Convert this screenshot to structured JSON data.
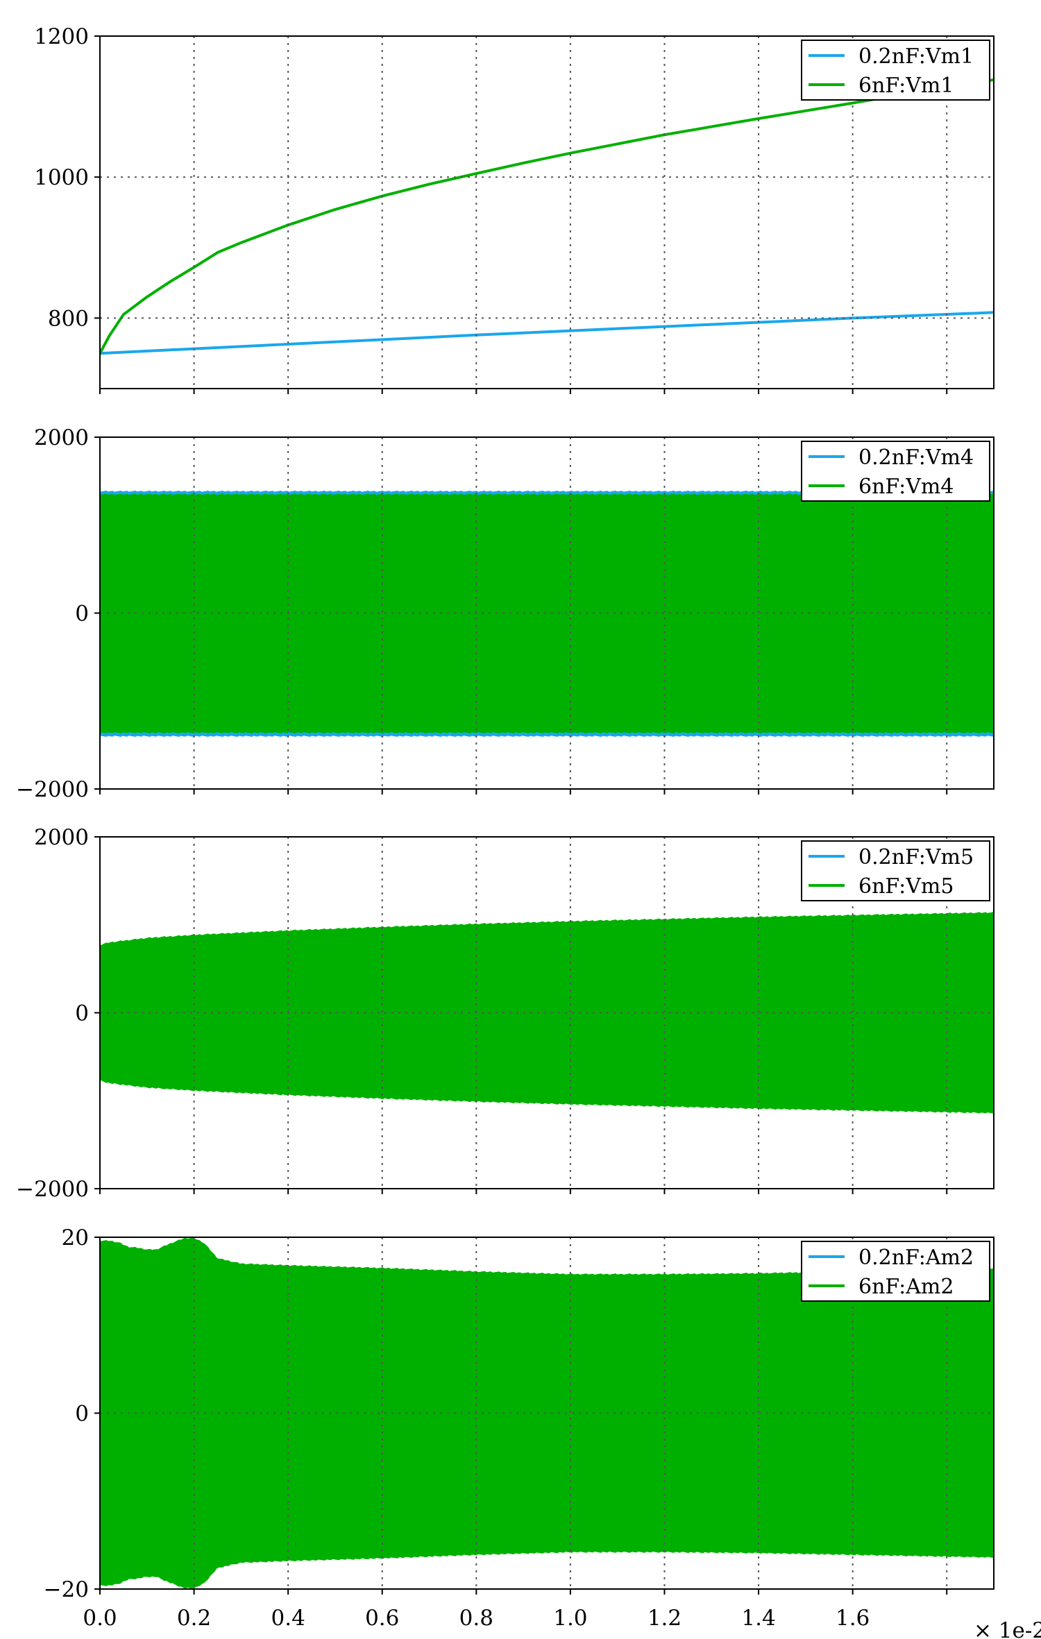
{
  "figure": {
    "x_scale_label": "× 1e-2",
    "x_ticks": [
      "0.0",
      "0.2",
      "0.4",
      "0.6",
      "0.8",
      "1.0",
      "1.2",
      "1.4",
      "1.6"
    ]
  },
  "colors": {
    "blue": "#1aa7ec",
    "green": "#00b000",
    "grid": "#555555"
  },
  "chart_data": [
    {
      "type": "line",
      "xlim": [
        0,
        1.9
      ],
      "ylim": [
        700,
        1200
      ],
      "y_ticks": [
        800,
        1000,
        1200
      ],
      "y_tick_labels": [
        "800",
        "1000",
        "1200"
      ],
      "grid": true,
      "legend_position": "top-right",
      "series": [
        {
          "name": "0.2nF:Vm1",
          "color": "blue",
          "x": [
            0,
            0.4,
            0.8,
            1.2,
            1.6,
            1.9
          ],
          "y": [
            750,
            763,
            776,
            788,
            800,
            808
          ]
        },
        {
          "name": "6nF:Vm1",
          "color": "green",
          "x": [
            0,
            0.02,
            0.05,
            0.1,
            0.15,
            0.2,
            0.25,
            0.3,
            0.4,
            0.5,
            0.6,
            0.7,
            0.8,
            0.9,
            1.0,
            1.2,
            1.4,
            1.6,
            1.8,
            1.9
          ],
          "y": [
            750,
            775,
            805,
            830,
            852,
            872,
            893,
            907,
            932,
            954,
            973,
            990,
            1005,
            1020,
            1034,
            1060,
            1083,
            1105,
            1128,
            1138
          ]
        }
      ]
    },
    {
      "type": "area",
      "xlim": [
        0,
        1.9
      ],
      "ylim": [
        -2000,
        2000
      ],
      "y_ticks": [
        -2000,
        0,
        2000
      ],
      "y_tick_labels": [
        "−2000",
        "0",
        "2000"
      ],
      "grid": true,
      "legend_position": "top-right",
      "series": [
        {
          "name": "0.2nF:Vm4",
          "color": "blue",
          "x": [
            0,
            0.2,
            0.4,
            0.6,
            0.8,
            1.0,
            1.2,
            1.4,
            1.6,
            1.9
          ],
          "upper": [
            1375,
            1375,
            1375,
            1375,
            1375,
            1375,
            1375,
            1375,
            1375,
            1375
          ],
          "lower": [
            -1390,
            -1390,
            -1390,
            -1390,
            -1390,
            -1390,
            -1390,
            -1390,
            -1390,
            -1390
          ]
        },
        {
          "name": "6nF:Vm4",
          "color": "green",
          "x": [
            0,
            0.2,
            0.4,
            0.6,
            0.8,
            1.0,
            1.2,
            1.4,
            1.6,
            1.9
          ],
          "upper": [
            1340,
            1340,
            1340,
            1340,
            1340,
            1340,
            1340,
            1340,
            1340,
            1340
          ],
          "lower": [
            -1350,
            -1350,
            -1350,
            -1350,
            -1350,
            -1350,
            -1350,
            -1350,
            -1350,
            -1350
          ]
        }
      ]
    },
    {
      "type": "area",
      "xlim": [
        0,
        1.9
      ],
      "ylim": [
        -2000,
        2000
      ],
      "y_ticks": [
        -2000,
        0,
        2000
      ],
      "y_tick_labels": [
        "−2000",
        "0",
        "2000"
      ],
      "grid": true,
      "legend_position": "top-right",
      "series": [
        {
          "name": "0.2nF:Vm5",
          "color": "blue",
          "x": [
            0,
            1.9
          ],
          "upper": [
            0,
            0
          ],
          "lower": [
            0,
            0
          ]
        },
        {
          "name": "6nF:Vm5",
          "color": "green",
          "x": [
            0,
            0.02,
            0.1,
            0.2,
            0.3,
            0.4,
            0.6,
            0.8,
            1.0,
            1.2,
            1.4,
            1.6,
            1.8,
            1.9
          ],
          "upper": [
            760,
            790,
            840,
            875,
            900,
            925,
            965,
            1000,
            1030,
            1055,
            1080,
            1100,
            1120,
            1130
          ],
          "lower": [
            -760,
            -790,
            -840,
            -875,
            -900,
            -925,
            -965,
            -1000,
            -1030,
            -1055,
            -1080,
            -1100,
            -1120,
            -1130
          ]
        }
      ]
    },
    {
      "type": "area",
      "xlim": [
        0,
        1.9
      ],
      "ylim": [
        -20,
        20
      ],
      "y_ticks": [
        -20,
        0,
        20
      ],
      "y_tick_labels": [
        "−20",
        "0",
        "20"
      ],
      "grid": true,
      "legend_position": "top-right",
      "series": [
        {
          "name": "0.2nF:Am2",
          "color": "blue",
          "x": [
            0,
            1.9
          ],
          "upper": [
            0,
            0
          ],
          "lower": [
            0,
            0
          ]
        },
        {
          "name": "6nF:Am2",
          "color": "green",
          "x": [
            0,
            0.02,
            0.04,
            0.06,
            0.08,
            0.1,
            0.12,
            0.15,
            0.18,
            0.2,
            0.22,
            0.25,
            0.3,
            0.4,
            0.6,
            0.8,
            1.0,
            1.2,
            1.4,
            1.6,
            1.8,
            1.9
          ],
          "upper": [
            19.5,
            19.5,
            19.3,
            18.8,
            18.7,
            18.5,
            18.5,
            19.2,
            19.8,
            19.8,
            19.3,
            17.5,
            16.9,
            16.7,
            16.4,
            16.0,
            15.7,
            15.7,
            15.8,
            16.0,
            16.2,
            16.3
          ],
          "lower": [
            -19.5,
            -19.5,
            -19.3,
            -18.8,
            -18.7,
            -18.5,
            -18.5,
            -19.2,
            -19.8,
            -19.8,
            -19.3,
            -17.5,
            -16.9,
            -16.7,
            -16.4,
            -16.0,
            -15.7,
            -15.7,
            -15.8,
            -16.0,
            -16.2,
            -16.3
          ]
        }
      ]
    }
  ]
}
